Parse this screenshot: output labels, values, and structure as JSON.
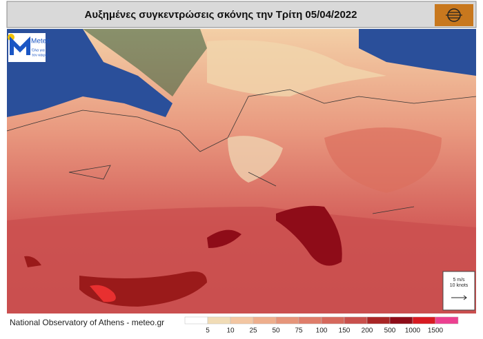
{
  "header": {
    "title": "Αυξημένες συγκεντρώσεις σκόνης την Τρίτη 05/04/2022"
  },
  "logo": {
    "name": "Meteo",
    "tagline": [
      "Όλα για",
      "τον καιρό"
    ]
  },
  "wind_scale": {
    "speed": "5 m/s",
    "knots": "10 knots"
  },
  "footer": {
    "source": "National Observatory of Athens - meteo.gr"
  },
  "legend": {
    "labels": [
      5,
      10,
      25,
      50,
      75,
      100,
      150,
      200,
      500,
      1000,
      1500
    ],
    "colors": [
      "#ffffff",
      "#f1dcb6",
      "#f3c6a2",
      "#eeae8c",
      "#e6957a",
      "#df7d6a",
      "#d6685c",
      "#c9504c",
      "#a92626",
      "#8e0c18",
      "#d81a22",
      "#ec4090"
    ]
  }
}
